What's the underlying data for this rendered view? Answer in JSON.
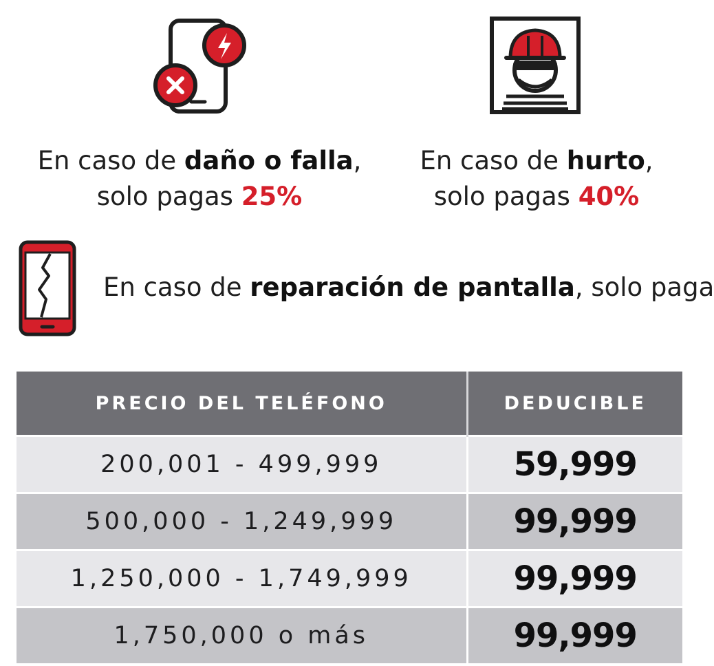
{
  "coverage": {
    "damage": {
      "line1_prefix": "En caso de ",
      "line1_bold": "daño o falla",
      "line1_suffix": ",",
      "line2_prefix": "solo pagas ",
      "line2_pct": "25%"
    },
    "theft": {
      "line1_prefix": "En caso de ",
      "line1_bold": "hurto",
      "line1_suffix": ",",
      "line2_prefix": "solo pagas ",
      "line2_pct": "40%"
    },
    "screen": {
      "prefix": "En caso de ",
      "bold": "reparación de pantalla",
      "suffix": ", solo pagas:"
    }
  },
  "table": {
    "headers": [
      "PRECIO DEL TELÉFONO",
      "DEDUCIBLE"
    ],
    "rows": [
      {
        "price": "200,001 - 499,999",
        "deductible": "59,999"
      },
      {
        "price": "500,000 - 1,249,999",
        "deductible": "99,999"
      },
      {
        "price": "1,250,000 - 1,749,999",
        "deductible": "99,999"
      },
      {
        "price": "1,750,000 o más",
        "deductible": "99,999"
      }
    ]
  },
  "icons": {
    "damage": "phone-damage-icon",
    "theft": "thief-icon",
    "screen": "cracked-screen-icon"
  },
  "colors": {
    "accent_red": "#d51f2a",
    "header_gray": "#6f6f74",
    "row_light": "#e7e7ea",
    "row_dark": "#c4c4c8"
  }
}
